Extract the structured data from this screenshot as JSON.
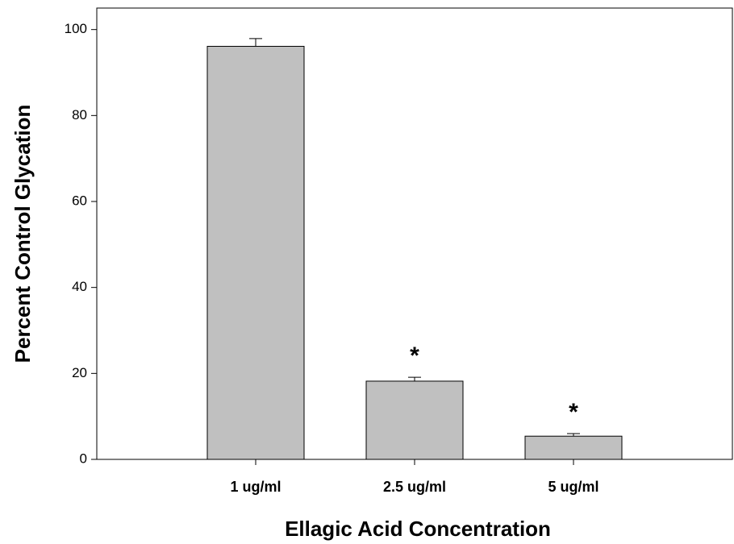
{
  "chart_data": {
    "type": "bar",
    "categories": [
      "1 ug/ml",
      "2.5 ug/ml",
      "5 ug/ml"
    ],
    "values": [
      96.1,
      18.2,
      5.4
    ],
    "errors": [
      1.8,
      0.9,
      0.6
    ],
    "color": "#c0c0c0",
    "ylim": [
      0,
      105
    ],
    "yticks": [
      0,
      20,
      40,
      60,
      80,
      100
    ],
    "ylabel": "Percent Control Glycation",
    "xlabel": "Ellagic Acid Concentration",
    "annotations": [
      {
        "category": "2.5 ug/ml",
        "text": "*"
      },
      {
        "category": "5 ug/ml",
        "text": "*"
      }
    ],
    "grid": false
  }
}
